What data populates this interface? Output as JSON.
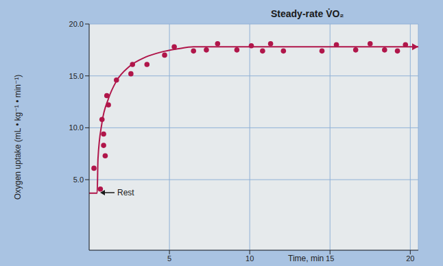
{
  "chart_data": {
    "type": "scatter",
    "xlabel": "Time, min",
    "ylabel": "Oxygen uptake (mL • kg⁻¹ • min⁻¹)",
    "annotations": [
      "Steady-rate V̇O₂",
      "Rest"
    ],
    "xlim": [
      0,
      20.5
    ],
    "xticks": [
      5,
      10,
      15,
      20
    ],
    "ylim": [
      -1.8,
      20
    ],
    "yticks": [
      {
        "value": 5,
        "label": "5.0"
      },
      {
        "value": 10,
        "label": "10.0"
      },
      {
        "value": 15,
        "label": "15.0"
      },
      {
        "value": 20,
        "label": "20.0"
      }
    ],
    "grid": true,
    "series": [
      {
        "type": "line",
        "color": "#b0164a",
        "line_style": "solid",
        "x": [
          0,
          0.5,
          0.55,
          0.8,
          1.2,
          1.7,
          2.5,
          3.5,
          4.5,
          5.5,
          6.5,
          20.5
        ],
        "values": [
          3.7,
          3.7,
          7,
          10.5,
          12.8,
          14.5,
          15.9,
          16.8,
          17.3,
          17.6,
          17.8,
          17.8
        ]
      },
      {
        "type": "scatter",
        "color": "#b0164a",
        "marker": "circle",
        "x": [
          0.3,
          0.7,
          0.8,
          0.9,
          0.9,
          1.0,
          1.1,
          1.2,
          1.7,
          2.6,
          2.7,
          3.6,
          4.7,
          5.3,
          6.5,
          7.3,
          8.0,
          9.2,
          10.1,
          10.8,
          11.3,
          12.1,
          14.5,
          15.4,
          16.6,
          17.5,
          18.4,
          19.2,
          19.7
        ],
        "values": [
          6.1,
          4.1,
          10.8,
          9.4,
          8.3,
          7.3,
          13.1,
          12.2,
          14.6,
          15.2,
          16.1,
          16.1,
          17.0,
          17.8,
          17.4,
          17.5,
          18.1,
          17.5,
          17.9,
          17.4,
          18.1,
          17.4,
          17.4,
          18.0,
          17.5,
          18.1,
          17.5,
          17.4,
          18.0
        ]
      }
    ]
  }
}
